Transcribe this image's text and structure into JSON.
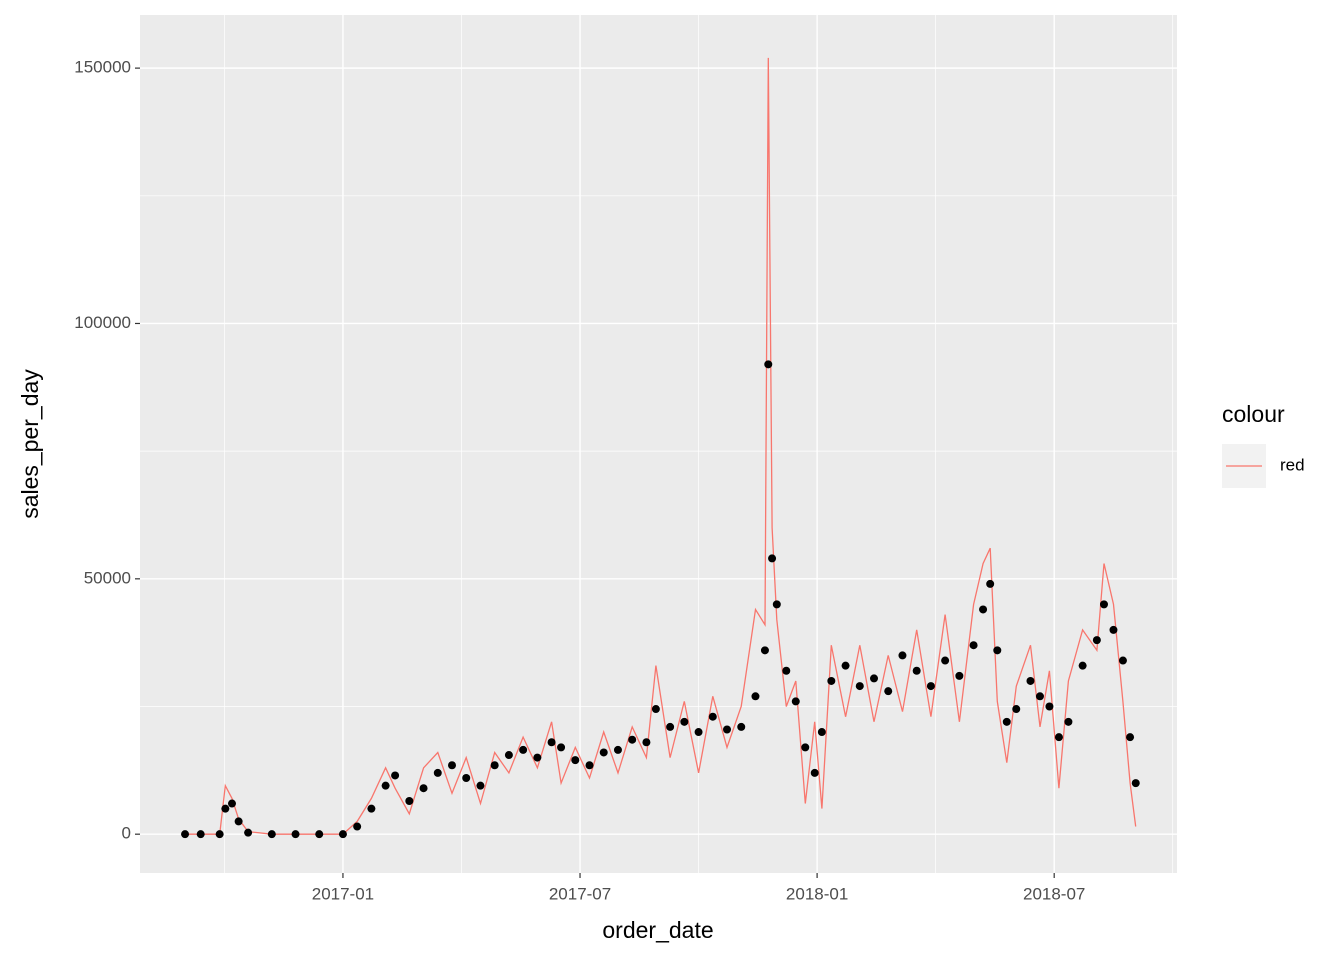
{
  "chart_data": {
    "type": "line",
    "x_label": "order_date",
    "y_label": "sales_per_day",
    "legend_title": "colour",
    "legend_position": "right",
    "grid": true,
    "xlim": [
      2016.572,
      2018.759
    ],
    "xticks": [
      {
        "value": 2017.0,
        "label": "2017-01"
      },
      {
        "value": 2017.5,
        "label": "2017-07"
      },
      {
        "value": 2018.0,
        "label": "2018-01"
      },
      {
        "value": 2018.5,
        "label": "2018-07"
      }
    ],
    "ylim": [
      -7600,
      160400
    ],
    "yticks": [
      0,
      50000,
      100000,
      150000
    ],
    "x": [
      2016.667,
      2016.7,
      2016.74,
      2016.752,
      2016.766,
      2016.78,
      2016.8,
      2016.85,
      2016.9,
      2016.95,
      2017.0,
      2017.03,
      2017.06,
      2017.09,
      2017.11,
      2017.14,
      2017.17,
      2017.2,
      2017.23,
      2017.26,
      2017.29,
      2017.32,
      2017.35,
      2017.38,
      2017.41,
      2017.44,
      2017.46,
      2017.49,
      2017.52,
      2017.55,
      2017.58,
      2017.61,
      2017.64,
      2017.66,
      2017.69,
      2017.72,
      2017.75,
      2017.78,
      2017.81,
      2017.84,
      2017.87,
      2017.89,
      2017.897,
      2017.905,
      2017.915,
      2017.935,
      2017.955,
      2017.975,
      2017.995,
      2018.01,
      2018.03,
      2018.06,
      2018.09,
      2018.12,
      2018.15,
      2018.18,
      2018.21,
      2018.24,
      2018.27,
      2018.3,
      2018.33,
      2018.35,
      2018.365,
      2018.38,
      2018.4,
      2018.42,
      2018.45,
      2018.47,
      2018.49,
      2018.51,
      2018.53,
      2018.56,
      2018.59,
      2018.605,
      2018.625,
      2018.645,
      2018.66,
      2018.672
    ],
    "series": [
      {
        "name": "red",
        "color": "#F8766D",
        "style": "line",
        "values": [
          0,
          0,
          0,
          9500,
          7000,
          3000,
          500,
          0,
          0,
          0,
          0,
          2500,
          7000,
          13000,
          9000,
          4000,
          13000,
          16000,
          8000,
          15000,
          6000,
          16000,
          12000,
          19000,
          13000,
          22000,
          10000,
          17000,
          11000,
          20000,
          12000,
          21000,
          15000,
          33000,
          15000,
          26000,
          12000,
          27000,
          17000,
          25000,
          44000,
          41000,
          152000,
          60000,
          42000,
          25000,
          30000,
          6000,
          22000,
          5000,
          37000,
          23000,
          37000,
          22000,
          35000,
          24000,
          40000,
          23000,
          43000,
          22000,
          45000,
          53000,
          56000,
          26000,
          14000,
          29000,
          37000,
          21000,
          32000,
          9000,
          30000,
          40000,
          36000,
          53000,
          45000,
          26000,
          10000,
          1500
        ]
      },
      {
        "color": "#000000",
        "style": "point",
        "values": [
          0,
          0,
          0,
          5000,
          6000,
          2500,
          300,
          0,
          0,
          0,
          0,
          1500,
          5000,
          9500,
          11500,
          6500,
          9000,
          12000,
          13500,
          11000,
          9500,
          13500,
          15500,
          16500,
          15000,
          18000,
          17000,
          14500,
          13500,
          16000,
          16500,
          18500,
          18000,
          24500,
          21000,
          22000,
          20000,
          23000,
          20500,
          21000,
          27000,
          36000,
          92000,
          54000,
          45000,
          32000,
          26000,
          17000,
          12000,
          20000,
          30000,
          33000,
          29000,
          30500,
          28000,
          35000,
          32000,
          29000,
          34000,
          31000,
          37000,
          44000,
          49000,
          36000,
          22000,
          24500,
          30000,
          27000,
          25000,
          19000,
          22000,
          33000,
          38000,
          45000,
          40000,
          34000,
          19000,
          10000
        ]
      }
    ]
  }
}
